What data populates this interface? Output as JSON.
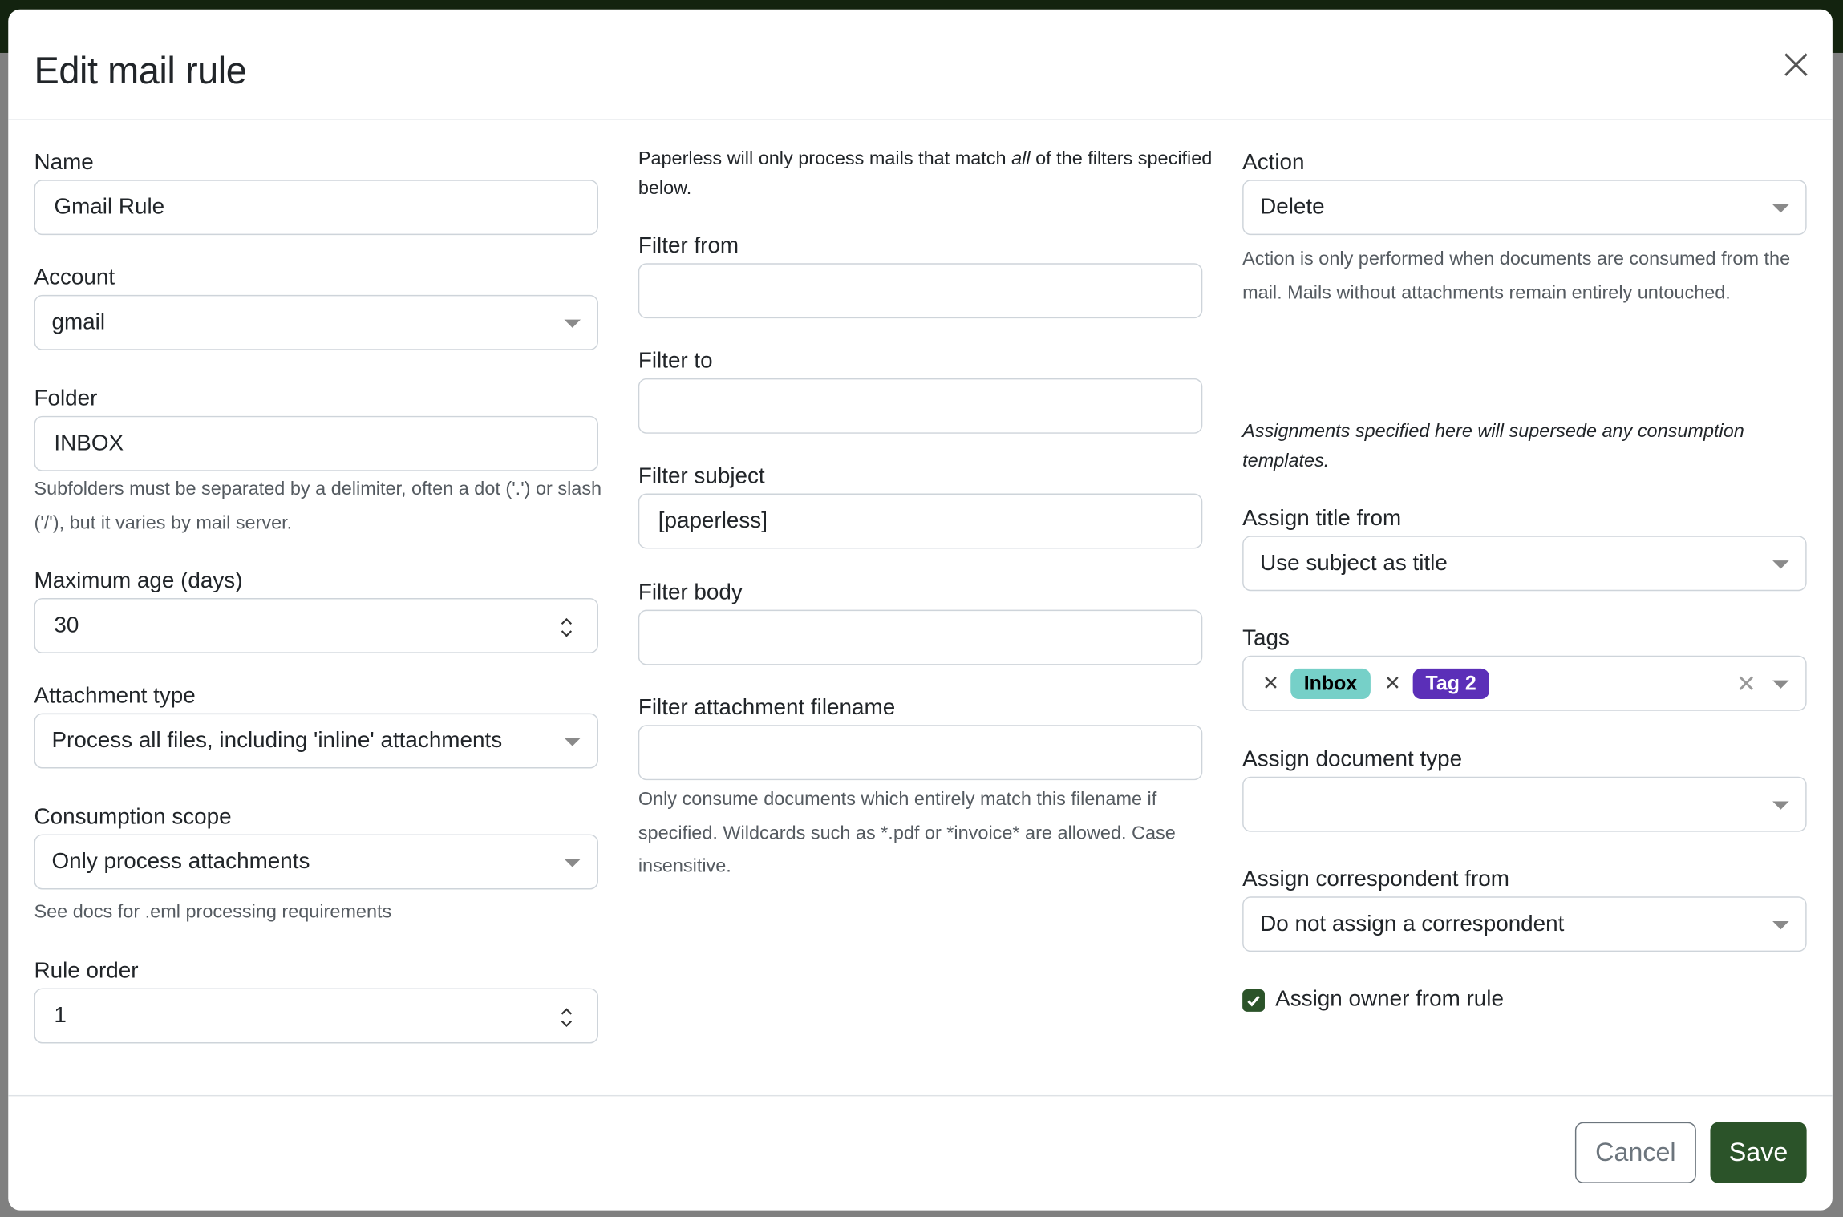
{
  "modal": {
    "title": "Edit mail rule",
    "close_icon": "close-icon"
  },
  "col1": {
    "name": {
      "label": "Name",
      "value": "Gmail Rule"
    },
    "account": {
      "label": "Account",
      "value": "gmail"
    },
    "folder": {
      "label": "Folder",
      "value": "INBOX",
      "help": "Subfolders must be separated by a delimiter, often a dot ('.') or slash ('/'), but it varies by mail server."
    },
    "max_age": {
      "label": "Maximum age (days)",
      "value": "30"
    },
    "attachment_type": {
      "label": "Attachment type",
      "value": "Process all files, including 'inline' attachments"
    },
    "consumption_scope": {
      "label": "Consumption scope",
      "value": "Only process attachments",
      "help": "See docs for .eml processing requirements"
    },
    "rule_order": {
      "label": "Rule order",
      "value": "1"
    }
  },
  "col2": {
    "intro_before": "Paperless will only process mails that match ",
    "intro_em": "all",
    "intro_after": " of the filters specified below.",
    "filter_from": {
      "label": "Filter from",
      "value": ""
    },
    "filter_to": {
      "label": "Filter to",
      "value": ""
    },
    "filter_subject": {
      "label": "Filter subject",
      "value": "[paperless]"
    },
    "filter_body": {
      "label": "Filter body",
      "value": ""
    },
    "filter_attachment": {
      "label": "Filter attachment filename",
      "value": "",
      "help": "Only consume documents which entirely match this filename if specified. Wildcards such as *.pdf or *invoice* are allowed. Case insensitive."
    }
  },
  "col3": {
    "action": {
      "label": "Action",
      "value": "Delete",
      "help": "Action is only performed when documents are consumed from the mail. Mails without attachments remain entirely untouched."
    },
    "assign_note": "Assignments specified here will supersede any consumption templates.",
    "title_from": {
      "label": "Assign title from",
      "value": "Use subject as title"
    },
    "tags": {
      "label": "Tags",
      "items": [
        {
          "name": "Inbox",
          "bg": "#76d0c8",
          "fg": "#000000"
        },
        {
          "name": "Tag 2",
          "bg": "#5b2fb8",
          "fg": "#ffffff"
        }
      ]
    },
    "doc_type": {
      "label": "Assign document type",
      "value": ""
    },
    "correspondent": {
      "label": "Assign correspondent from",
      "value": "Do not assign a correspondent"
    },
    "owner": {
      "label": "Assign owner from rule",
      "checked": true
    }
  },
  "footer": {
    "cancel": "Cancel",
    "save": "Save"
  },
  "colors": {
    "primary": "#2b5329",
    "backdrop_bar": "#13230f"
  }
}
